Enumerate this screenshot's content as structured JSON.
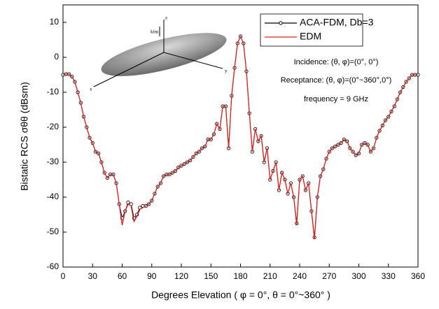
{
  "chart_data": {
    "type": "line",
    "x_label": "Degrees Elevation ( φ = 0°, θ = 0°~360° )",
    "y_label": "Bistatic RCS σθθ (dBsm)",
    "annotations": [
      "Incidence: (θ, φ)=(0°, 0°)",
      "Receptance: (θ, φ)=(0°~360°,0°)",
      "frequency = 9 GHz"
    ],
    "inset_labels": [
      "x",
      "y",
      "z",
      "kinc"
    ],
    "legend": "upper right",
    "xlim": [
      0,
      360
    ],
    "xticks": [
      0,
      30,
      60,
      90,
      120,
      150,
      180,
      210,
      240,
      270,
      300,
      330,
      360
    ],
    "ylim": [
      -60,
      15
    ],
    "yticks": [
      -60,
      -50,
      -40,
      -30,
      -20,
      -10,
      0,
      10
    ],
    "x": [
      0,
      3,
      6,
      9,
      12,
      15,
      18,
      21,
      24,
      27,
      30,
      33,
      36,
      39,
      42,
      45,
      48,
      51,
      54,
      57,
      60,
      63,
      66,
      69,
      72,
      75,
      78,
      81,
      84,
      87,
      90,
      93,
      96,
      99,
      102,
      105,
      108,
      111,
      114,
      117,
      120,
      123,
      126,
      129,
      132,
      135,
      138,
      141,
      144,
      147,
      150,
      153,
      156,
      159,
      162,
      165,
      168,
      171,
      174,
      177,
      180,
      183,
      186,
      189,
      192,
      195,
      198,
      201,
      204,
      207,
      210,
      213,
      216,
      219,
      222,
      225,
      228,
      231,
      234,
      237,
      240,
      243,
      246,
      249,
      252,
      255,
      258,
      261,
      264,
      267,
      270,
      273,
      276,
      279,
      282,
      285,
      288,
      291,
      294,
      297,
      300,
      303,
      306,
      309,
      312,
      315,
      318,
      321,
      324,
      327,
      330,
      333,
      336,
      339,
      342,
      345,
      348,
      351,
      354,
      357,
      360
    ],
    "series": [
      {
        "name": "ACA-FDM, Db=3",
        "color": "#000000",
        "marker": "circle",
        "values": [
          -5,
          -4.8,
          -4.8,
          -5.5,
          -7,
          -10,
          -13,
          -17,
          -20,
          -23,
          -24.5,
          -27,
          -27.5,
          -30,
          -33,
          -34.5,
          -33.5,
          -33.5,
          -36,
          -42,
          -46,
          -44,
          -41.5,
          -42,
          -46,
          -45,
          -43,
          -42.5,
          -42.5,
          -42,
          -41,
          -39,
          -37,
          -36,
          -34,
          -33.5,
          -33.5,
          -33,
          -32.5,
          -31.5,
          -31,
          -30.5,
          -30,
          -29.5,
          -28.5,
          -27.5,
          -27,
          -26,
          -25.5,
          -23.5,
          -23.5,
          -22,
          -19,
          -20.5,
          -14,
          -14,
          -26,
          -11,
          -3,
          4,
          6,
          4,
          -4,
          -16,
          -27,
          -20.5,
          -24,
          -22.5,
          -30,
          -26,
          -35,
          -32.5,
          -30,
          -38,
          -33,
          -35,
          -39,
          -36,
          -40,
          -47.5,
          -35,
          -34,
          -38,
          -36,
          -44,
          -51.5,
          -40,
          -34,
          -32,
          -29,
          -27,
          -26,
          -25.5,
          -25,
          -24.5,
          -23.5,
          -24,
          -26,
          -27,
          -28,
          -27.5,
          -25,
          -24.5,
          -25,
          -27,
          -26,
          -23,
          -21,
          -19.5,
          -18,
          -17,
          -15.5,
          -14,
          -12,
          -10,
          -8.5,
          -7,
          -6,
          -5,
          -5,
          -5
        ]
      },
      {
        "name": "EDM",
        "color": "#e0201b",
        "marker": "none",
        "values": [
          -5,
          -4.8,
          -4.8,
          -5.5,
          -7,
          -10,
          -13,
          -17,
          -20,
          -23,
          -24.5,
          -27,
          -27.5,
          -30,
          -33,
          -34.5,
          -33.5,
          -33.5,
          -36,
          -42,
          -48,
          -44,
          -42,
          -42.5,
          -47,
          -45.5,
          -43.5,
          -43,
          -42.5,
          -42,
          -41,
          -39,
          -37,
          -36,
          -34,
          -33.5,
          -33.5,
          -33,
          -32.5,
          -31.5,
          -31,
          -30.5,
          -30,
          -29.5,
          -28.5,
          -27.5,
          -27,
          -26,
          -25.5,
          -23.5,
          -23.5,
          -22,
          -19,
          -20.5,
          -14,
          -14,
          -26,
          -11,
          -3,
          4,
          6,
          4,
          -4,
          -16,
          -27,
          -20.5,
          -24,
          -22.5,
          -30,
          -26,
          -35,
          -32.5,
          -30,
          -38,
          -33,
          -35,
          -39,
          -36,
          -40,
          -48,
          -35,
          -34,
          -38,
          -36,
          -44,
          -52,
          -40,
          -34,
          -32,
          -29,
          -27,
          -26,
          -25.5,
          -25,
          -24.5,
          -23.5,
          -24,
          -26,
          -27,
          -28,
          -27.5,
          -25,
          -24.5,
          -25,
          -27,
          -26,
          -23,
          -21,
          -19.5,
          -18,
          -17,
          -15.5,
          -14,
          -12,
          -10,
          -8.5,
          -7,
          -6,
          -5,
          -5,
          -5
        ]
      }
    ]
  }
}
